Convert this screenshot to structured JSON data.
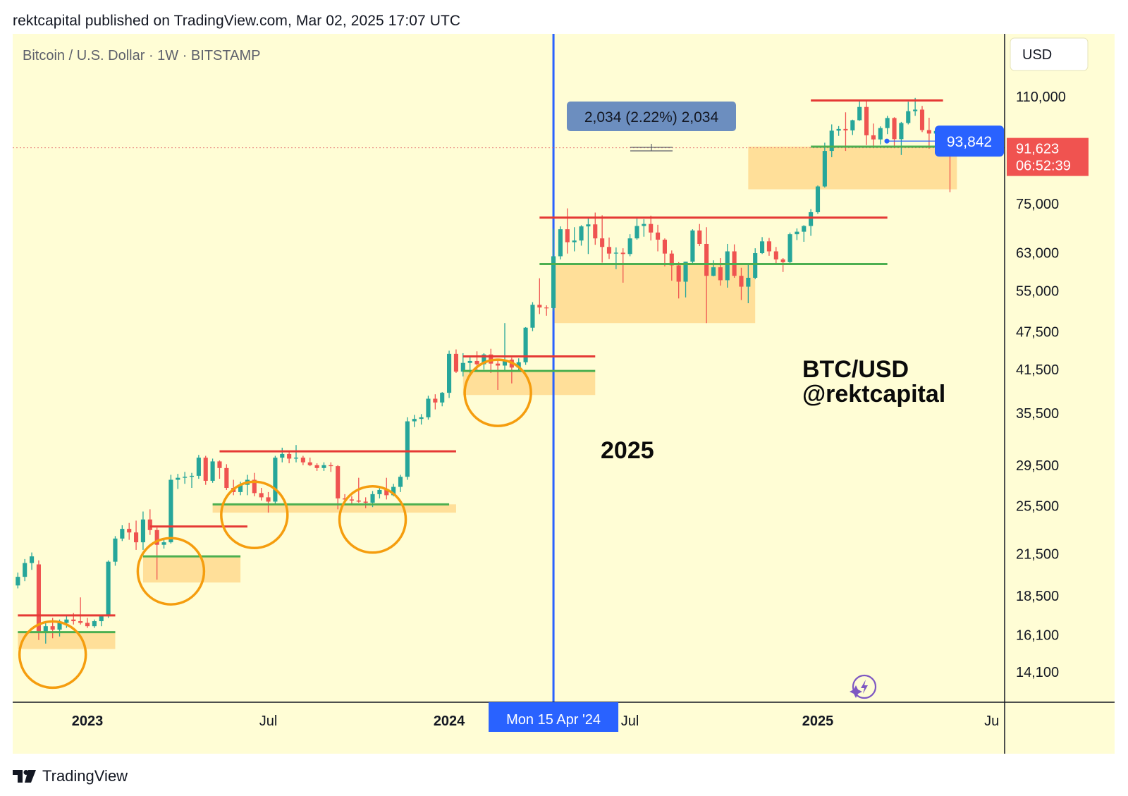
{
  "header": {
    "published_line": "rektcapital published on TradingView.com, Mar 02, 2025 17:07 UTC"
  },
  "footer": {
    "brand": "TradingView"
  },
  "colors": {
    "background": "#fffdd5",
    "up": "#26a69a",
    "down": "#ef5350",
    "resistance": "#e53935",
    "support": "#4caf50",
    "zone": "#ffd98e",
    "circle": "#f59d0e",
    "marker": "#2962ff"
  },
  "chart_data": {
    "type": "candlestick",
    "title": "Bitcoin / U.S. Dollar · 1W · BITSTAMP",
    "currency_button": "USD",
    "scale": "log",
    "ylim": [
      12500,
      135000
    ],
    "y_ticks": [
      {
        "value": 110000,
        "label": "110,000"
      },
      {
        "value": 75000,
        "label": "75,000"
      },
      {
        "value": 63000,
        "label": "63,000"
      },
      {
        "value": 55000,
        "label": "55,000"
      },
      {
        "value": 47500,
        "label": "47,500"
      },
      {
        "value": 41500,
        "label": "41,500"
      },
      {
        "value": 35500,
        "label": "35,500"
      },
      {
        "value": 29500,
        "label": "29,500"
      },
      {
        "value": 25500,
        "label": "25,500"
      },
      {
        "value": 21500,
        "label": "21,500"
      },
      {
        "value": 18500,
        "label": "18,500"
      },
      {
        "value": 16100,
        "label": "16,100"
      },
      {
        "value": 14100,
        "label": "14,100"
      }
    ],
    "x_ticks": [
      {
        "week": 0,
        "label": "2023",
        "bold": true
      },
      {
        "week": 26,
        "label": "Jul",
        "bold": false
      },
      {
        "week": 52,
        "label": "2024",
        "bold": true
      },
      {
        "week": 78,
        "label": "Jul",
        "bold": false
      },
      {
        "week": 105,
        "label": "2025",
        "bold": true
      },
      {
        "week": 130,
        "label": "Ju",
        "bold": false
      }
    ],
    "x_week0": "2023-01-02",
    "crosshair": {
      "week": 67,
      "label": "Mon 15 Apr '24"
    },
    "measure_tooltip": "2,034 (2.22%) 2,034",
    "current_price": {
      "value": 91623,
      "label": "91,623",
      "countdown": "06:52:39"
    },
    "cursor_price": {
      "value": 93842,
      "label": "93,842"
    },
    "annotations": [
      {
        "text": "BTC/USD"
      },
      {
        "text": "@rektcapital"
      },
      {
        "text": "2025"
      }
    ],
    "levels": [
      {
        "kind": "resistance",
        "price": 17250,
        "from_week": -10,
        "to_week": 4
      },
      {
        "kind": "support",
        "price": 16250,
        "from_week": -10,
        "to_week": 4
      },
      {
        "kind": "resistance",
        "price": 23700,
        "from_week": 9,
        "to_week": 23
      },
      {
        "kind": "support",
        "price": 21300,
        "from_week": 8,
        "to_week": 22
      },
      {
        "kind": "resistance",
        "price": 31000,
        "from_week": 19,
        "to_week": 53
      },
      {
        "kind": "support",
        "price": 25650,
        "from_week": 18,
        "to_week": 52
      },
      {
        "kind": "resistance",
        "price": 43500,
        "from_week": 54,
        "to_week": 73
      },
      {
        "kind": "support",
        "price": 41300,
        "from_week": 54,
        "to_week": 73
      },
      {
        "kind": "resistance",
        "price": 71400,
        "from_week": 65,
        "to_week": 115
      },
      {
        "kind": "support",
        "price": 60500,
        "from_week": 65,
        "to_week": 115
      },
      {
        "kind": "resistance",
        "price": 108500,
        "from_week": 104,
        "to_week": 123
      },
      {
        "kind": "support",
        "price": 92000,
        "from_week": 104,
        "to_week": 123
      }
    ],
    "zones": [
      {
        "from_week": -10,
        "to_week": 4,
        "top": 16250,
        "bottom": 15300
      },
      {
        "from_week": 8,
        "to_week": 22,
        "top": 21300,
        "bottom": 19400
      },
      {
        "from_week": 18,
        "to_week": 53,
        "top": 25650,
        "bottom": 24900
      },
      {
        "from_week": 54,
        "to_week": 73,
        "top": 41300,
        "bottom": 37900
      },
      {
        "from_week": 67,
        "to_week": 96,
        "top": 60500,
        "bottom": 49000
      },
      {
        "from_week": 95,
        "to_week": 125,
        "top": 92000,
        "bottom": 79000
      }
    ],
    "circles": [
      {
        "week": -5,
        "price": 15000
      },
      {
        "week": 12,
        "price": 20200
      },
      {
        "week": 24,
        "price": 24700
      },
      {
        "week": 41,
        "price": 24300
      },
      {
        "week": 59,
        "price": 38200
      }
    ],
    "candles_start_week": -10,
    "candles": [
      [
        19200,
        20100,
        19000,
        19800
      ],
      [
        19800,
        21100,
        19500,
        20800
      ],
      [
        20800,
        21600,
        20300,
        21300
      ],
      [
        20700,
        21000,
        15800,
        16300
      ],
      [
        16300,
        16900,
        15600,
        16600
      ],
      [
        16600,
        17100,
        15900,
        16400
      ],
      [
        16400,
        17000,
        16000,
        16800
      ],
      [
        16800,
        17300,
        16500,
        17000
      ],
      [
        17000,
        17400,
        16700,
        16900
      ],
      [
        16900,
        18400,
        16700,
        16800
      ],
      [
        16800,
        17100,
        16500,
        16600
      ],
      [
        16600,
        17000,
        16500,
        16900
      ],
      [
        16900,
        17300,
        16600,
        17200
      ],
      [
        17200,
        21000,
        17100,
        20900
      ],
      [
        20900,
        22900,
        20600,
        22700
      ],
      [
        22700,
        23800,
        22500,
        23500
      ],
      [
        23500,
        24000,
        22600,
        23200
      ],
      [
        23200,
        24200,
        21800,
        22400
      ],
      [
        22400,
        25000,
        21800,
        24300
      ],
      [
        24300,
        25200,
        23000,
        23400
      ],
      [
        23400,
        23600,
        19600,
        22200
      ],
      [
        22200,
        22700,
        21900,
        22400
      ],
      [
        22400,
        28500,
        22300,
        28000
      ],
      [
        28000,
        28600,
        27100,
        28200
      ],
      [
        28200,
        28800,
        27600,
        28300
      ],
      [
        28300,
        28700,
        27200,
        28400
      ],
      [
        28400,
        30600,
        28100,
        30300
      ],
      [
        30300,
        30500,
        27500,
        27900
      ],
      [
        27900,
        30200,
        27700,
        29900
      ],
      [
        29900,
        30000,
        28100,
        29200
      ],
      [
        29200,
        29600,
        27000,
        27200
      ],
      [
        27200,
        28000,
        26500,
        26800
      ],
      [
        26800,
        27800,
        26500,
        27500
      ],
      [
        27500,
        28500,
        26500,
        28000
      ],
      [
        28000,
        28700,
        26400,
        26700
      ],
      [
        26700,
        27200,
        26000,
        26300
      ],
      [
        26300,
        26800,
        24900,
        25900
      ],
      [
        25900,
        30500,
        25600,
        30300
      ],
      [
        30300,
        31400,
        29800,
        30700
      ],
      [
        30700,
        31000,
        29700,
        30200
      ],
      [
        30200,
        31700,
        29800,
        30300
      ],
      [
        30300,
        30500,
        29500,
        29800
      ],
      [
        29800,
        30300,
        29400,
        29500
      ],
      [
        29500,
        29700,
        28900,
        29200
      ],
      [
        29200,
        29800,
        28900,
        29500
      ],
      [
        29500,
        29800,
        28800,
        29400
      ],
      [
        29400,
        29500,
        25200,
        26200
      ],
      [
        26200,
        26600,
        25600,
        26100
      ],
      [
        26100,
        26400,
        25700,
        26000
      ],
      [
        26000,
        28200,
        25800,
        25900
      ],
      [
        25900,
        26300,
        25300,
        25800
      ],
      [
        25800,
        26900,
        25400,
        26600
      ],
      [
        26600,
        27400,
        26200,
        27000
      ],
      [
        27000,
        28200,
        26100,
        26500
      ],
      [
        26500,
        27600,
        26400,
        27300
      ],
      [
        27300,
        28500,
        26800,
        28300
      ],
      [
        28300,
        35000,
        28000,
        34500
      ],
      [
        34500,
        35300,
        33800,
        34800
      ],
      [
        34800,
        35400,
        34100,
        35000
      ],
      [
        35000,
        37800,
        34700,
        37400
      ],
      [
        37400,
        38000,
        36000,
        36900
      ],
      [
        36900,
        38300,
        36400,
        38200
      ],
      [
        38200,
        44400,
        37500,
        43900
      ],
      [
        43900,
        44600,
        41000,
        41200
      ],
      [
        41200,
        44000,
        40500,
        42500
      ],
      [
        42500,
        43500,
        40600,
        42800
      ],
      [
        42800,
        44300,
        41200,
        42300
      ],
      [
        42300,
        44000,
        41500,
        43800
      ],
      [
        43800,
        44700,
        41000,
        42400
      ],
      [
        42400,
        43000,
        38600,
        42100
      ],
      [
        42100,
        49000,
        41300,
        43000
      ],
      [
        43000,
        43300,
        39500,
        41800
      ],
      [
        41800,
        43200,
        41400,
        42600
      ],
      [
        42600,
        48300,
        42200,
        48200
      ],
      [
        48200,
        52800,
        47600,
        52300
      ],
      [
        52300,
        57500,
        50600,
        51800
      ],
      [
        51800,
        52200,
        50300,
        51700
      ],
      [
        51700,
        68600,
        51200,
        62200
      ],
      [
        62200,
        69200,
        61500,
        68500
      ],
      [
        68500,
        73800,
        62800,
        65400
      ],
      [
        65400,
        69000,
        63300,
        65800
      ],
      [
        65800,
        69500,
        64600,
        69200
      ],
      [
        69200,
        71300,
        62700,
        69700
      ],
      [
        69700,
        72700,
        64800,
        66300
      ],
      [
        66300,
        72000,
        60800,
        64300
      ],
      [
        64300,
        66500,
        61600,
        62800
      ],
      [
        62800,
        64200,
        59400,
        63000
      ],
      [
        63000,
        64000,
        56600,
        62700
      ],
      [
        62700,
        67300,
        62200,
        66300
      ],
      [
        66300,
        71600,
        66000,
        69300
      ],
      [
        69300,
        71000,
        66700,
        69800
      ],
      [
        69800,
        71900,
        65800,
        67700
      ],
      [
        67700,
        69600,
        63300,
        66000
      ],
      [
        66000,
        66300,
        60000,
        62800
      ],
      [
        62800,
        63500,
        57000,
        60200
      ],
      [
        60200,
        60900,
        53500,
        56800
      ],
      [
        56800,
        61000,
        53700,
        61000
      ],
      [
        61000,
        68500,
        60300,
        68200
      ],
      [
        68200,
        69800,
        64500,
        65000
      ],
      [
        65000,
        69000,
        49000,
        58000
      ],
      [
        58000,
        61300,
        57900,
        59800
      ],
      [
        59800,
        61800,
        56000,
        57100
      ],
      [
        57100,
        65000,
        55600,
        63300
      ],
      [
        63300,
        64900,
        57600,
        58000
      ],
      [
        58000,
        59700,
        53200,
        55800
      ],
      [
        55800,
        60700,
        52600,
        57600
      ],
      [
        57600,
        64000,
        57300,
        62900
      ],
      [
        62900,
        66600,
        62700,
        65600
      ],
      [
        65600,
        66400,
        62300,
        63300
      ],
      [
        63300,
        64300,
        60400,
        61500
      ],
      [
        61500,
        61800,
        58800,
        60900
      ],
      [
        60900,
        67700,
        60500,
        67300
      ],
      [
        67300,
        68700,
        65900,
        67900
      ],
      [
        67900,
        69500,
        65500,
        69300
      ],
      [
        69300,
        73600,
        66900,
        72800
      ],
      [
        72800,
        80100,
        72400,
        79800
      ],
      [
        79800,
        93300,
        79500,
        90600
      ],
      [
        90600,
        99600,
        88600,
        97400
      ],
      [
        97400,
        99000,
        95600,
        98000
      ],
      [
        98000,
        104000,
        90600,
        97500
      ],
      [
        97500,
        101300,
        95900,
        101100
      ],
      [
        101100,
        108400,
        100900,
        106000
      ],
      [
        106000,
        108200,
        92500,
        95800
      ],
      [
        95800,
        99900,
        91500,
        94400
      ],
      [
        94400,
        98900,
        92700,
        98300
      ],
      [
        98300,
        102700,
        96200,
        101900
      ],
      [
        101900,
        102200,
        91500,
        94500
      ],
      [
        94500,
        100500,
        89300,
        100100
      ],
      [
        100100,
        108000,
        99600,
        104400
      ],
      [
        104400,
        109500,
        102700,
        105000
      ],
      [
        105000,
        106400,
        96900,
        97600
      ],
      [
        97600,
        102000,
        91300,
        96400
      ],
      [
        96400,
        98000,
        95200,
        97300
      ],
      [
        97300,
        98800,
        95000,
        96100
      ],
      [
        96100,
        96500,
        78200,
        91600
      ]
    ]
  }
}
